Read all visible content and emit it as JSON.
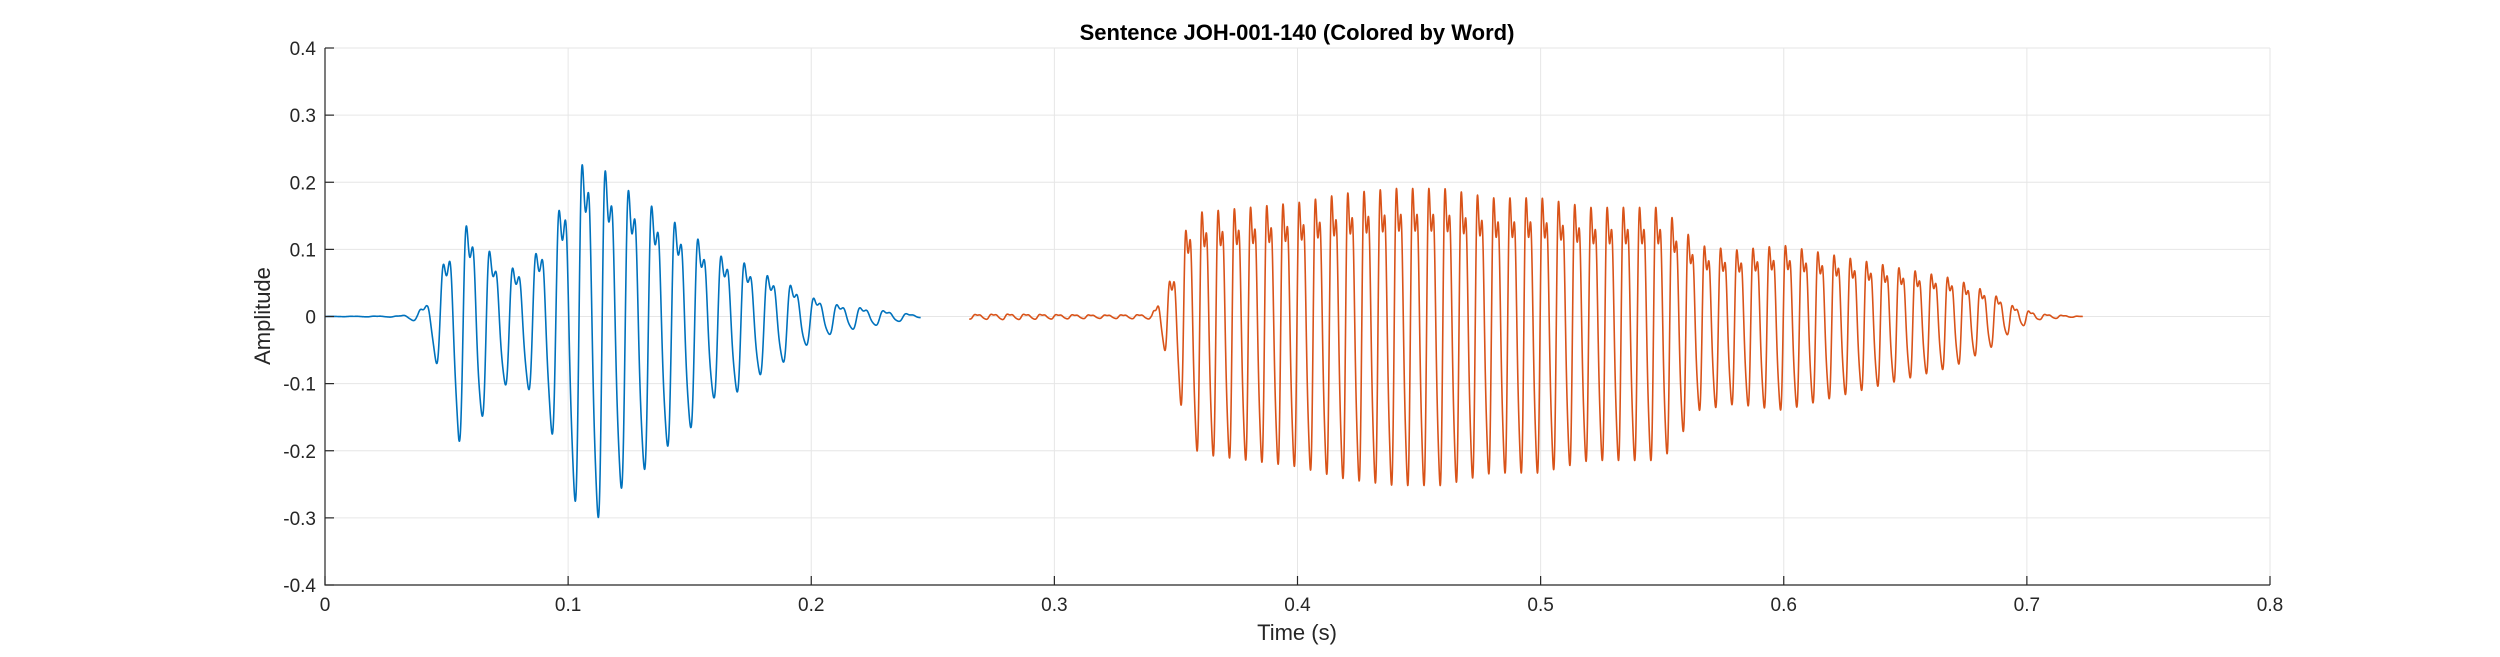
{
  "chart_data": {
    "type": "line",
    "title": "Sentence JOH-001-140 (Colored by Word)",
    "xlabel": "Time (s)",
    "ylabel": "Amplitude",
    "xlim": [
      0,
      0.8
    ],
    "ylim": [
      -0.4,
      0.4
    ],
    "grid": true,
    "x_ticks": [
      0,
      0.1,
      0.2,
      0.3,
      0.4,
      0.5,
      0.6,
      0.7,
      0.8
    ],
    "x_tick_labels": [
      "0",
      "0.1",
      "0.2",
      "0.3",
      "0.4",
      "0.5",
      "0.6",
      "0.7",
      "0.8"
    ],
    "y_ticks": [
      0.4,
      0.3,
      0.2,
      0.1,
      0,
      -0.1,
      -0.2,
      -0.3,
      -0.4
    ],
    "y_tick_labels": [
      "0.4",
      "0.3",
      "0.2",
      "0.1",
      "0",
      "-0.1",
      "-0.2",
      "-0.3",
      "-0.4"
    ],
    "series": [
      {
        "color": "#0072BD",
        "t_range": [
          0.0,
          0.245
        ],
        "osc_freq_hz": 105,
        "envelope": [
          [
            0.0,
            0.0
          ],
          [
            0.03,
            0.001
          ],
          [
            0.038,
            0.008
          ],
          [
            0.042,
            0.03
          ],
          [
            0.048,
            0.1
          ],
          [
            0.055,
            0.2
          ],
          [
            0.062,
            0.18
          ],
          [
            0.07,
            0.12
          ],
          [
            0.078,
            0.1
          ],
          [
            0.085,
            0.12
          ],
          [
            0.092,
            0.17
          ],
          [
            0.1,
            0.27
          ],
          [
            0.107,
            0.33
          ],
          [
            0.113,
            0.32
          ],
          [
            0.12,
            0.28
          ],
          [
            0.13,
            0.25
          ],
          [
            0.14,
            0.21
          ],
          [
            0.15,
            0.18
          ],
          [
            0.16,
            0.13
          ],
          [
            0.17,
            0.12
          ],
          [
            0.18,
            0.09
          ],
          [
            0.19,
            0.07
          ],
          [
            0.2,
            0.04
          ],
          [
            0.21,
            0.025
          ],
          [
            0.225,
            0.015
          ],
          [
            0.245,
            0.002
          ]
        ]
      },
      {
        "color": "#D95319",
        "t_range": [
          0.265,
          0.723
        ],
        "osc_freq_hz": 150,
        "envelope": [
          [
            0.265,
            0.004
          ],
          [
            0.28,
            0.005
          ],
          [
            0.3,
            0.004
          ],
          [
            0.32,
            0.003
          ],
          [
            0.34,
            0.004
          ],
          [
            0.345,
            0.05
          ],
          [
            0.35,
            0.1
          ],
          [
            0.355,
            0.2
          ],
          [
            0.36,
            0.22
          ],
          [
            0.38,
            0.23
          ],
          [
            0.4,
            0.24
          ],
          [
            0.42,
            0.26
          ],
          [
            0.44,
            0.27
          ],
          [
            0.46,
            0.27
          ],
          [
            0.48,
            0.25
          ],
          [
            0.5,
            0.25
          ],
          [
            0.52,
            0.23
          ],
          [
            0.55,
            0.23
          ],
          [
            0.565,
            0.15
          ],
          [
            0.58,
            0.14
          ],
          [
            0.6,
            0.15
          ],
          [
            0.62,
            0.13
          ],
          [
            0.65,
            0.1
          ],
          [
            0.67,
            0.08
          ],
          [
            0.685,
            0.05
          ],
          [
            0.695,
            0.02
          ],
          [
            0.705,
            0.005
          ],
          [
            0.723,
            0.0
          ]
        ]
      }
    ]
  }
}
